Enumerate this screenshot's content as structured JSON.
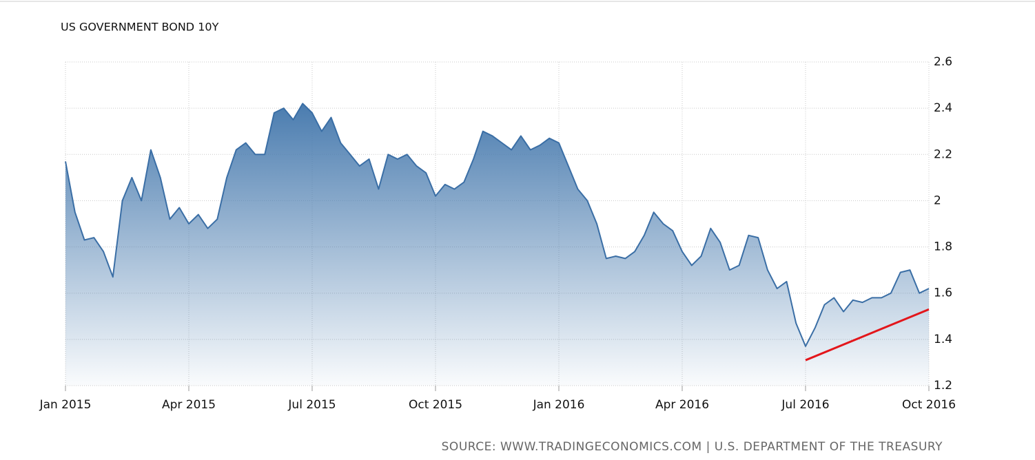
{
  "chart_data": {
    "type": "area",
    "title": "US GOVERNMENT BOND 10Y",
    "source": "SOURCE: WWW.TRADINGECONOMICS.COM | U.S. DEPARTMENT OF THE TREASURY",
    "categories": [
      "Jan 2015",
      null,
      null,
      null,
      null,
      null,
      null,
      null,
      null,
      null,
      null,
      null,
      null,
      "Apr 2015",
      null,
      null,
      null,
      null,
      null,
      null,
      null,
      null,
      null,
      null,
      null,
      null,
      "Jul 2015",
      null,
      null,
      null,
      null,
      null,
      null,
      null,
      null,
      null,
      null,
      null,
      null,
      "Oct 2015",
      null,
      null,
      null,
      null,
      null,
      null,
      null,
      null,
      null,
      null,
      null,
      null,
      "Jan 2016",
      null,
      null,
      null,
      null,
      null,
      null,
      null,
      null,
      null,
      null,
      null,
      null,
      "Apr 2016",
      null,
      null,
      null,
      null,
      null,
      null,
      null,
      null,
      null,
      null,
      null,
      null,
      "Jul 2016",
      null,
      null,
      null,
      null,
      null,
      null,
      null,
      null,
      null,
      null,
      null,
      null,
      "Oct 2016"
    ],
    "values": [
      2.17,
      1.95,
      1.83,
      1.84,
      1.78,
      1.67,
      2.0,
      2.1,
      2.0,
      2.22,
      2.1,
      1.92,
      1.97,
      1.9,
      1.94,
      1.88,
      1.92,
      2.1,
      2.22,
      2.25,
      2.2,
      2.2,
      2.38,
      2.4,
      2.35,
      2.42,
      2.38,
      2.3,
      2.36,
      2.25,
      2.2,
      2.15,
      2.18,
      2.05,
      2.2,
      2.18,
      2.2,
      2.15,
      2.12,
      2.02,
      2.07,
      2.05,
      2.08,
      2.18,
      2.3,
      2.28,
      2.25,
      2.22,
      2.28,
      2.22,
      2.24,
      2.27,
      2.25,
      2.15,
      2.05,
      2.0,
      1.9,
      1.75,
      1.76,
      1.75,
      1.78,
      1.85,
      1.95,
      1.9,
      1.87,
      1.78,
      1.72,
      1.76,
      1.88,
      1.82,
      1.7,
      1.72,
      1.85,
      1.84,
      1.7,
      1.62,
      1.65,
      1.47,
      1.37,
      1.45,
      1.55,
      1.58,
      1.52,
      1.57,
      1.56,
      1.58,
      1.58,
      1.6,
      1.69,
      1.7,
      1.6,
      1.62
    ],
    "color": "#3a6ea5",
    "area_color": "#4a7caf",
    "ylim": [
      1.2,
      2.6
    ],
    "yticks": [
      1.2,
      1.4,
      1.6,
      1.8,
      2,
      2.2,
      2.4,
      2.6
    ],
    "grid": true,
    "trendline": {
      "x": [
        "Jul 2016",
        "Oct 2016"
      ],
      "values": [
        1.31,
        1.53
      ],
      "color": "#e3161b"
    }
  }
}
